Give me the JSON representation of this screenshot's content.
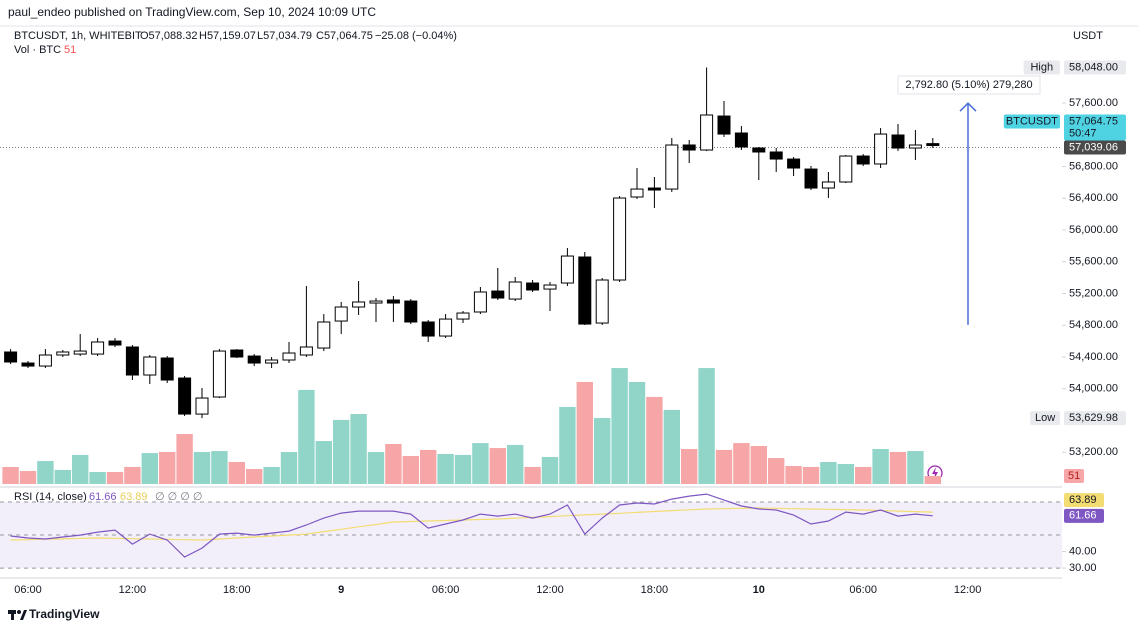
{
  "header": {
    "publisher": "paul_endeo published on TradingView.com, Sep 10, 2024 10:09 UTC"
  },
  "chart_data": {
    "type": "candlestick",
    "symbol": "BTCUSDT, 1h, WHITEBIT",
    "ohlc_legend": [
      "O57,088.32",
      "H57,159.07",
      "L57,034.79",
      "C57,064.75",
      "−25.08 (−0.04%)"
    ],
    "currency": "USDT",
    "categories": [
      null,
      "06:00",
      null,
      null,
      null,
      null,
      null,
      "12:00",
      null,
      null,
      null,
      null,
      null,
      "18:00",
      null,
      null,
      null,
      null,
      null,
      "9",
      null,
      null,
      null,
      null,
      null,
      "06:00",
      null,
      null,
      null,
      null,
      null,
      "12:00",
      null,
      null,
      null,
      null,
      null,
      "18:00",
      null,
      null,
      null,
      null,
      null,
      "10",
      null,
      null,
      null,
      null,
      null,
      "06:00",
      null,
      null,
      null,
      null,
      null,
      "12:00"
    ],
    "series": [
      {
        "name": "BTCUSDT",
        "up_color": "#ffffff",
        "down_color": "#000000",
        "border_color": "#000000",
        "open": [
          54463,
          54324,
          54286,
          54425,
          54437,
          54437,
          54601,
          54526,
          54173,
          54387,
          54135,
          53681,
          53896,
          54488,
          54412,
          54324,
          54362,
          54425,
          54513,
          54853,
          55030,
          55080,
          55118,
          55105,
          54841,
          54664,
          54878,
          54967,
          55231,
          55130,
          55332,
          55256,
          55332,
          55660,
          54828,
          55370,
          56416,
          56529,
          56516,
          57071,
          57008,
          57436,
          57222,
          57033,
          56983,
          56894,
          56768,
          56529,
          56605,
          56932,
          56832,
          57197,
          57033,
          57088.32,
          null,
          null
        ],
        "high": [
          54500,
          54349,
          54500,
          54488,
          54689,
          54639,
          54639,
          54551,
          54425,
          54412,
          54160,
          54009,
          54500,
          54500,
          54437,
          54400,
          54589,
          55294,
          54941,
          55093,
          55357,
          55143,
          55168,
          55130,
          54866,
          54941,
          54979,
          55282,
          55521,
          55408,
          55370,
          55345,
          55773,
          55723,
          55395,
          56428,
          56781,
          56668,
          57159,
          57134,
          58048,
          57625,
          57310,
          57046,
          57033,
          56920,
          56806,
          56731,
          56945,
          56957,
          57285,
          57335,
          57260,
          57159.07,
          null,
          null
        ],
        "low": [
          54311,
          54261,
          54261,
          54400,
          54412,
          54412,
          54526,
          54110,
          54059,
          54072,
          53656,
          53629.98,
          53883,
          54387,
          54286,
          54261,
          54324,
          54400,
          54475,
          54689,
          54929,
          54841,
          54841,
          54815,
          54589,
          54639,
          54828,
          54941,
          55118,
          55105,
          55219,
          54979,
          55294,
          54803,
          54803,
          55345,
          56390,
          56277,
          56479,
          56844,
          56995,
          57172,
          57008,
          56630,
          56731,
          56680,
          56504,
          56403,
          56592,
          56806,
          56781,
          56995,
          56882,
          57034.79,
          null,
          null
        ],
        "close": [
          54337,
          54286,
          54425,
          54463,
          54475,
          54589,
          54551,
          54173,
          54400,
          54110,
          53681,
          53883,
          54475,
          54400,
          54324,
          54362,
          54450,
          54526,
          54841,
          55030,
          55093,
          55105,
          55080,
          54841,
          54664,
          54878,
          54954,
          55219,
          55143,
          55345,
          55244,
          55307,
          55672,
          54815,
          55370,
          56403,
          56516,
          56504,
          57071,
          57008,
          57449,
          57209,
          57046,
          56983,
          56894,
          56781,
          56529,
          56605,
          56932,
          56832,
          57209,
          57033,
          57071,
          57064.75,
          null,
          null
        ]
      }
    ],
    "ylim": [
      52762,
      58520
    ],
    "yticks": [
      {
        "value": 53200,
        "label": "53,200.00"
      },
      {
        "value": 54000,
        "label": "54,000.00"
      },
      {
        "value": 54400,
        "label": "54,400.00"
      },
      {
        "value": 54800,
        "label": "54,800.00"
      },
      {
        "value": 55200,
        "label": "55,200.00"
      },
      {
        "value": 55600,
        "label": "55,600.00"
      },
      {
        "value": 56000,
        "label": "56,000.00"
      },
      {
        "value": 56400,
        "label": "56,400.00"
      },
      {
        "value": 56800,
        "label": "56,800.00"
      },
      {
        "value": 57600,
        "label": "57,600.00"
      }
    ],
    "grid": false,
    "price_labels": [
      {
        "name": "High",
        "value": 58048,
        "label": "58,048.00",
        "color": "#e9eaee",
        "text_color": "#131722"
      },
      {
        "name": "BTCUSDT",
        "value": 57064.75,
        "label": "57,064.75",
        "countdown": "50:47",
        "color": "#4fd3e2",
        "text_color": "#131722"
      },
      {
        "value": 57039.06,
        "label": "57,039.06",
        "color": "#4a4a4a",
        "text_color": "#ffffff"
      },
      {
        "name": "Low",
        "value": 53629.98,
        "label": "53,629.98",
        "color": "#e9eaee",
        "text_color": "#131722"
      }
    ],
    "measure": {
      "label": "2,792.80 (5.10%) 279,280",
      "from": 54805.2,
      "to": 57598,
      "color": "#4a6fd6"
    },
    "volume": {
      "name": "Vol · BTC",
      "value_label": "51",
      "ylim": [
        0,
        2662
      ],
      "up_color": "#91d5c9",
      "down_color": "#f6a6a6",
      "values": [
        109,
        83,
        147,
        90,
        186,
        77,
        77,
        109,
        198,
        205,
        320,
        205,
        211,
        141,
        96,
        109,
        205,
        602,
        275,
        410,
        448,
        205,
        256,
        179,
        218,
        192,
        186,
        262,
        230,
        250,
        109,
        173,
        493,
        653,
        422,
        742,
        653,
        557,
        474,
        224,
        742,
        218,
        262,
        243,
        166,
        115,
        109,
        141,
        128,
        109,
        224,
        205,
        211,
        51,
        null,
        null
      ]
    },
    "rsi": {
      "title": "RSI (14, close)",
      "value_label": "61.66",
      "ma_label": "63.89",
      "extra": "∅ ∅ ∅ ∅",
      "color": "#7e57c2",
      "ma_color": "#f3dc72",
      "ylim": [
        25.8,
        77.3
      ],
      "yticks": [
        {
          "value": 30,
          "label": "30.00"
        },
        {
          "value": 40,
          "label": "40.00"
        }
      ],
      "bands": [
        70,
        50,
        30
      ],
      "values": [
        49.4,
        48.2,
        47.6,
        48.8,
        50.0,
        51.8,
        53.0,
        44.5,
        50.6,
        47.0,
        36.7,
        42.1,
        50.6,
        51.2,
        50.0,
        51.2,
        52.4,
        56.1,
        60.3,
        63.3,
        64.5,
        64.5,
        64.5,
        62.7,
        54.2,
        56.7,
        59.1,
        62.7,
        61.5,
        62.7,
        60.3,
        62.7,
        68.2,
        50.6,
        60.3,
        68.2,
        69.4,
        68.8,
        71.8,
        73.6,
        74.8,
        71.2,
        67.6,
        65.8,
        65.2,
        62.1,
        56.7,
        58.5,
        63.9,
        62.7,
        65.2,
        61.5,
        62.7,
        61.66,
        null,
        null
      ],
      "ma_values": [
        47.0,
        47.2,
        47.5,
        47.7,
        48.0,
        48.2,
        48.0,
        47.8,
        47.6,
        47.4,
        47.2,
        47.0,
        47.6,
        48.2,
        48.8,
        49.4,
        50.0,
        50.6,
        52.1,
        53.5,
        55.0,
        56.4,
        57.9,
        58.2,
        58.5,
        58.8,
        59.1,
        59.4,
        59.7,
        60.2,
        60.7,
        61.2,
        61.7,
        62.2,
        62.7,
        63.2,
        63.7,
        64.3,
        64.8,
        65.3,
        65.8,
        66.0,
        66.2,
        66.4,
        66.2,
        66.0,
        65.8,
        65.6,
        65.4,
        65.2,
        64.9,
        64.5,
        64.2,
        63.89,
        null,
        null
      ]
    }
  },
  "footer": {
    "brand": "TradingView"
  }
}
